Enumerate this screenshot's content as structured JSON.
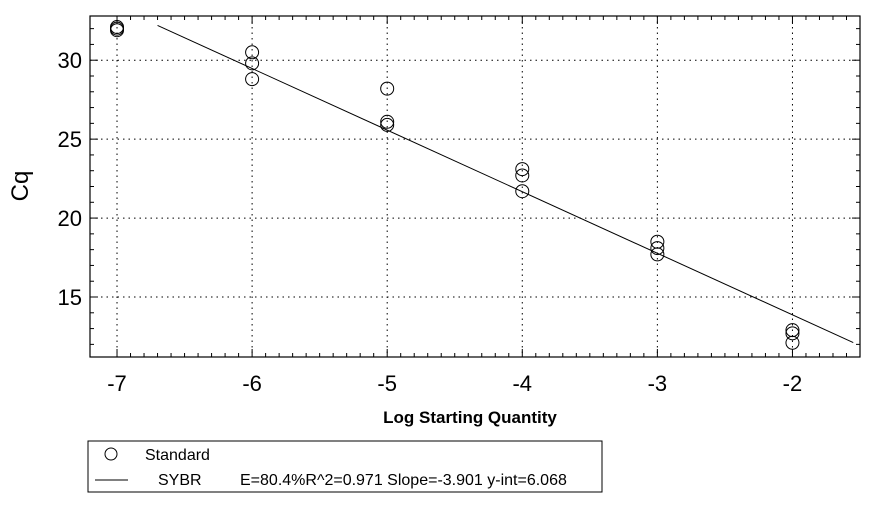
{
  "chart_data": {
    "type": "scatter",
    "xlabel": "Log Starting Quantity",
    "ylabel": "Cq",
    "xlim": [
      -7.2,
      -1.5
    ],
    "ylim": [
      11.2,
      32.8
    ],
    "x_ticks": [
      -7,
      -6,
      -5,
      -4,
      -3,
      -2
    ],
    "x_tick_labels": [
      "-7",
      "-6",
      "-5",
      "-4",
      "-3",
      "-2"
    ],
    "y_ticks": [
      15,
      20,
      25,
      30
    ],
    "y_tick_labels": [
      "15",
      "20",
      "25",
      "30"
    ],
    "grid": "dotted",
    "series": [
      {
        "name": "Standard",
        "marker": "open-circle",
        "points": [
          {
            "x": -7,
            "y": 31.9
          },
          {
            "x": -7,
            "y": 32.0
          },
          {
            "x": -7,
            "y": 32.1
          },
          {
            "x": -6,
            "y": 30.5
          },
          {
            "x": -6,
            "y": 29.8
          },
          {
            "x": -6,
            "y": 28.8
          },
          {
            "x": -5,
            "y": 28.2
          },
          {
            "x": -5,
            "y": 26.1
          },
          {
            "x": -5,
            "y": 25.9
          },
          {
            "x": -4,
            "y": 23.1
          },
          {
            "x": -4,
            "y": 22.7
          },
          {
            "x": -4,
            "y": 21.7
          },
          {
            "x": -3,
            "y": 18.5
          },
          {
            "x": -3,
            "y": 18.1
          },
          {
            "x": -3,
            "y": 17.7
          },
          {
            "x": -2,
            "y": 12.9
          },
          {
            "x": -2,
            "y": 12.7
          },
          {
            "x": -2,
            "y": 12.1
          }
        ]
      }
    ],
    "fit_line": {
      "slope": -3.901,
      "intercept": 6.068,
      "x_range": [
        -6.7,
        -1.55
      ]
    },
    "legend": {
      "placement": "bottom-left",
      "entries": [
        {
          "marker": "circle",
          "label": "Standard"
        },
        {
          "marker": "line",
          "label": "SYBR",
          "stats": "E=80.4%R^2=0.971 Slope=-3.901 y-int=6.068"
        }
      ]
    }
  }
}
